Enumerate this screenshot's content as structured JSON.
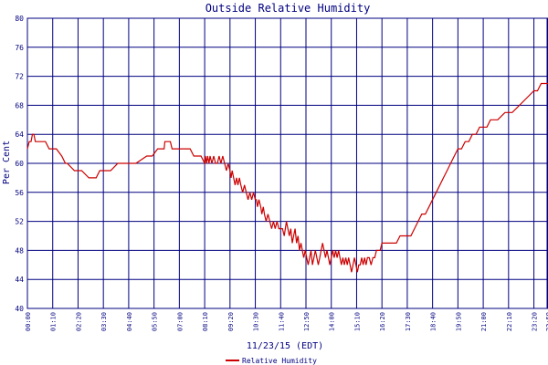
{
  "chart_data": {
    "type": "line",
    "title": "Outside Relative Humidity",
    "ylabel": "Per Cent",
    "xlabel": "11/23/15 (EDT)",
    "ylim": [
      40,
      80
    ],
    "y_ticks": [
      "40",
      "44",
      "48",
      "52",
      "56",
      "60",
      "64",
      "68",
      "72",
      "76",
      "80"
    ],
    "x_ticks": [
      "00:00",
      "01:10",
      "02:20",
      "03:30",
      "04:40",
      "05:50",
      "07:00",
      "08:10",
      "09:20",
      "10:30",
      "11:40",
      "12:50",
      "14:00",
      "15:10",
      "16:20",
      "17:30",
      "18:40",
      "19:50",
      "21:00",
      "22:10",
      "23:20",
      "23:59"
    ],
    "x_tick_minutes": [
      0,
      70,
      140,
      210,
      280,
      350,
      420,
      490,
      560,
      630,
      700,
      770,
      840,
      910,
      980,
      1050,
      1120,
      1190,
      1260,
      1330,
      1400,
      1439
    ],
    "xlim_minutes": [
      0,
      1439
    ],
    "grid": true,
    "legend_position": "bottom-center",
    "series": [
      {
        "name": "Relative Humidity",
        "color": "#cc0000",
        "x_minutes": [
          0,
          5,
          10,
          14,
          18,
          22,
          26,
          30,
          40,
          50,
          60,
          62,
          64,
          66,
          68,
          70,
          80,
          95,
          105,
          110,
          130,
          140,
          150,
          170,
          190,
          200,
          210,
          230,
          250,
          270,
          300,
          330,
          345,
          360,
          365,
          370,
          375,
          378,
          380,
          385,
          390,
          395,
          400,
          410,
          440,
          450,
          460,
          475,
          480,
          490,
          492,
          495,
          498,
          502,
          505,
          510,
          515,
          520,
          525,
          530,
          535,
          540,
          545,
          550,
          555,
          560,
          563,
          566,
          570,
          574,
          578,
          582,
          586,
          590,
          595,
          600,
          605,
          610,
          615,
          620,
          625,
          630,
          633,
          636,
          640,
          645,
          648,
          652,
          655,
          660,
          665,
          670,
          675,
          680,
          685,
          690,
          695,
          700,
          705,
          710,
          713,
          716,
          720,
          724,
          728,
          732,
          736,
          740,
          744,
          748,
          752,
          756,
          760,
          764,
          768,
          772,
          776,
          780,
          784,
          788,
          792,
          796,
          800,
          804,
          808,
          812,
          816,
          820,
          824,
          828,
          832,
          836,
          840,
          844,
          848,
          852,
          856,
          860,
          864,
          868,
          872,
          876,
          880,
          884,
          888,
          892,
          896,
          900,
          904,
          908,
          912,
          916,
          920,
          924,
          928,
          932,
          936,
          940,
          945,
          950,
          955,
          960,
          965,
          970,
          975,
          980,
          990,
          1000,
          1010,
          1020,
          1030,
          1040,
          1050,
          1060,
          1070,
          1080,
          1090,
          1100,
          1110,
          1120,
          1130,
          1140,
          1150,
          1160,
          1170,
          1180,
          1190,
          1200,
          1210,
          1220,
          1230,
          1240,
          1250,
          1260,
          1270,
          1280,
          1290,
          1300,
          1320,
          1340,
          1360,
          1380,
          1400,
          1410,
          1420,
          1430,
          1439
        ],
        "values": [
          62,
          63,
          63,
          64,
          64,
          63,
          63,
          63,
          63,
          63,
          62,
          62,
          62,
          62,
          62,
          62,
          62,
          61,
          60,
          60,
          59,
          59,
          59,
          58,
          58,
          59,
          59,
          59,
          60,
          60,
          60,
          61,
          61,
          62,
          62,
          62,
          62,
          62,
          63,
          63,
          63,
          63,
          62,
          62,
          62,
          62,
          61,
          61,
          61,
          60,
          61,
          60,
          61,
          60,
          61,
          60,
          61,
          60,
          60,
          61,
          60,
          61,
          60,
          59,
          60,
          59,
          58,
          59,
          58,
          57,
          58,
          57,
          58,
          57,
          56,
          57,
          56,
          55,
          56,
          55,
          56,
          55,
          55,
          54,
          55,
          54,
          53,
          54,
          53,
          52,
          53,
          52,
          51,
          52,
          51,
          52,
          51,
          51,
          51,
          50,
          51,
          52,
          51,
          50,
          51,
          49,
          50,
          51,
          49,
          50,
          48,
          49,
          48,
          47,
          48,
          47,
          46,
          47,
          48,
          46,
          47,
          48,
          47,
          46,
          47,
          48,
          49,
          48,
          47,
          48,
          47,
          46,
          47,
          48,
          47,
          48,
          47,
          48,
          47,
          46,
          47,
          46,
          47,
          46,
          47,
          46,
          45,
          46,
          47,
          46,
          45,
          46,
          46,
          47,
          46,
          47,
          46,
          47,
          47,
          46,
          47,
          47,
          48,
          48,
          48,
          49,
          49,
          49,
          49,
          49,
          50,
          50,
          50,
          50,
          51,
          52,
          53,
          53,
          54,
          55,
          56,
          57,
          58,
          59,
          60,
          61,
          62,
          62,
          63,
          63,
          64,
          64,
          65,
          65,
          65,
          66,
          66,
          66,
          67,
          67,
          68,
          69,
          70,
          70,
          71,
          71,
          71
        ]
      }
    ]
  }
}
